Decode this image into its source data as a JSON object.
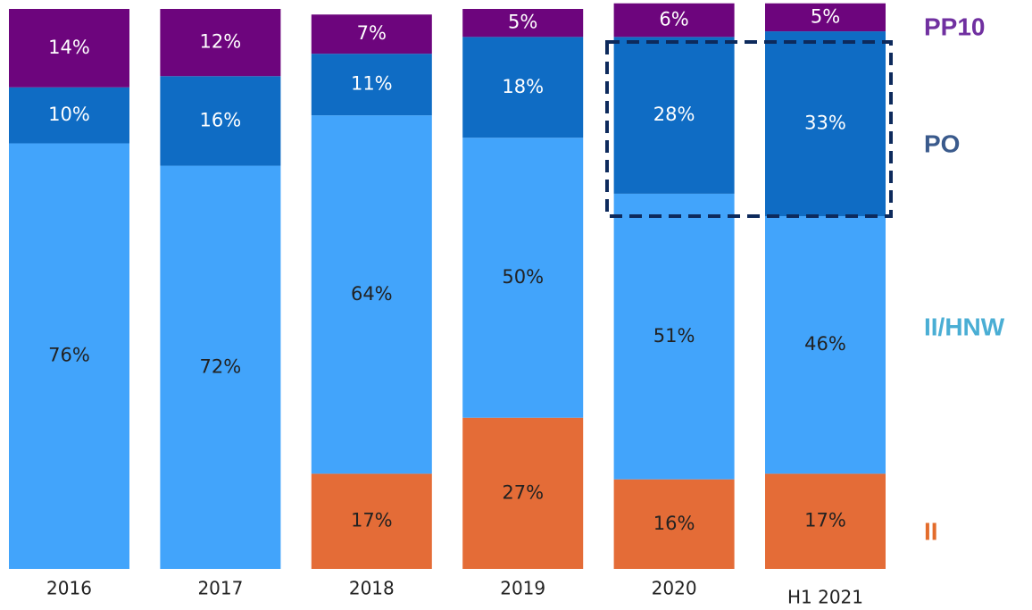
{
  "chart_data": {
    "type": "stacked_bar",
    "categories": [
      "2016",
      "2017",
      "2018",
      "2019",
      "2020",
      "H1 2021"
    ],
    "ylim": [
      0,
      100
    ],
    "series": [
      {
        "name": "II",
        "color": "#e46c37",
        "legend_color": "#e36c2c",
        "values": [
          null,
          null,
          17,
          27,
          16,
          17
        ],
        "value_labels": [
          null,
          null,
          "17%",
          "27%",
          "16%",
          "17%"
        ]
      },
      {
        "name": "II/HNW",
        "color": "#42a4fb",
        "legend_color": "#4aaed4",
        "values": [
          76,
          72,
          64,
          50,
          51,
          46
        ],
        "value_labels": [
          "76%",
          "72%",
          "64%",
          "50%",
          "51%",
          "46%"
        ]
      },
      {
        "name": "PO",
        "color": "#0f6cc4",
        "legend_color": "#3a5a8c",
        "values": [
          10,
          16,
          11,
          18,
          28,
          33
        ],
        "value_labels": [
          "10%",
          "16%",
          "11%",
          "18%",
          "28%",
          "33%"
        ]
      },
      {
        "name": "PP10",
        "color": "#6d057d",
        "legend_color": "#7030a0",
        "values": [
          14,
          12,
          7,
          5,
          6,
          5
        ],
        "value_labels": [
          "14%",
          "12%",
          "7%",
          "5%",
          "6%",
          "5%"
        ]
      }
    ]
  }
}
